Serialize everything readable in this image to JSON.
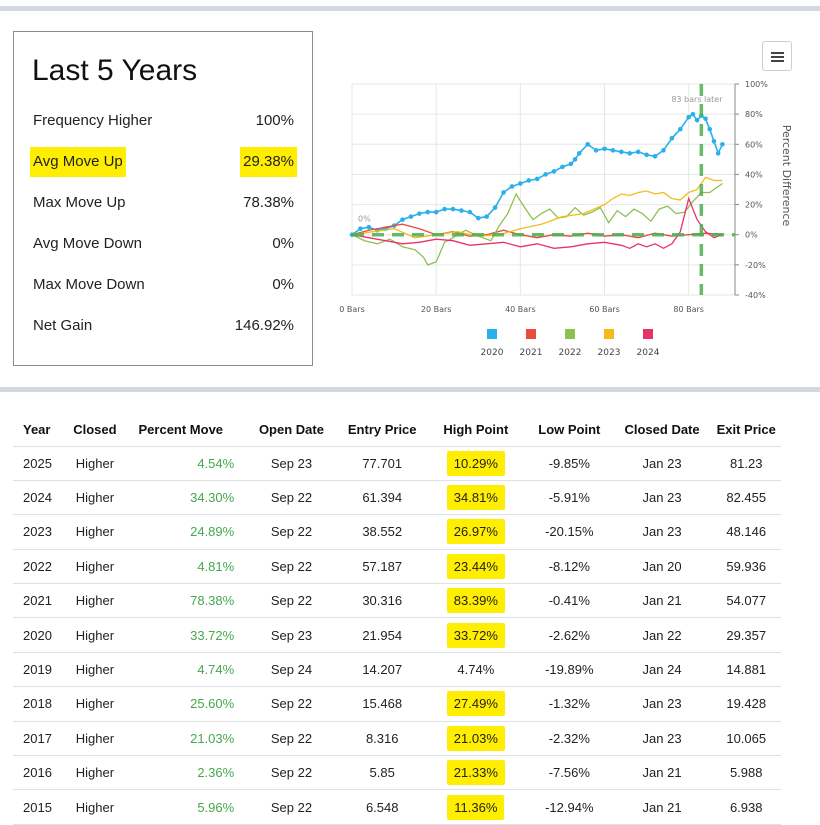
{
  "summary": {
    "title": "Last 5 Years",
    "stats": [
      {
        "label": "Frequency Higher",
        "value": "100%",
        "highlighted": false
      },
      {
        "label": "Avg Move Up",
        "value": "29.38%",
        "highlighted": true
      },
      {
        "label": "Max Move Up",
        "value": "78.38%",
        "highlighted": false
      },
      {
        "label": "Avg Move Down",
        "value": "0%",
        "highlighted": false
      },
      {
        "label": "Max Move Down",
        "value": "0%",
        "highlighted": false
      },
      {
        "label": "Net Gain",
        "value": "146.92%",
        "highlighted": false
      }
    ]
  },
  "menu": {
    "icon": "hamburger-menu-icon"
  },
  "chart_data": {
    "type": "line",
    "xlabel": "",
    "ylabel": "Percent Difference",
    "xlim": [
      0,
      91
    ],
    "ylim": [
      -40,
      100
    ],
    "x_ticks": [
      {
        "value": 0,
        "label": "0 Bars"
      },
      {
        "value": 20,
        "label": "20 Bars"
      },
      {
        "value": 40,
        "label": "40 Bars"
      },
      {
        "value": 60,
        "label": "60 Bars"
      },
      {
        "value": 80,
        "label": "80 Bars"
      }
    ],
    "y_ticks": [
      {
        "value": 100,
        "label": "100%"
      },
      {
        "value": 80,
        "label": "80%"
      },
      {
        "value": 60,
        "label": "60%"
      },
      {
        "value": 40,
        "label": "40%"
      },
      {
        "value": 20,
        "label": "20%"
      },
      {
        "value": 0,
        "label": "0%"
      },
      {
        "value": -20,
        "label": "-20%"
      },
      {
        "value": -40,
        "label": "-40%"
      }
    ],
    "grid": true,
    "legend_position": "bottom",
    "zero_label": "0%",
    "marker_x": 83,
    "marker_label": "83 bars later",
    "series": [
      {
        "name": "2020",
        "color": "#2ab0ea",
        "markers": true,
        "points": [
          [
            0,
            0
          ],
          [
            2,
            4
          ],
          [
            4,
            5
          ],
          [
            6,
            3
          ],
          [
            8,
            4
          ],
          [
            10,
            6
          ],
          [
            12,
            10
          ],
          [
            14,
            12
          ],
          [
            16,
            14
          ],
          [
            18,
            15
          ],
          [
            20,
            15
          ],
          [
            22,
            17
          ],
          [
            24,
            17
          ],
          [
            26,
            16
          ],
          [
            28,
            15
          ],
          [
            30,
            11
          ],
          [
            32,
            12
          ],
          [
            34,
            18
          ],
          [
            36,
            28
          ],
          [
            38,
            32
          ],
          [
            40,
            34
          ],
          [
            42,
            36
          ],
          [
            44,
            37
          ],
          [
            46,
            40
          ],
          [
            48,
            42
          ],
          [
            50,
            45
          ],
          [
            52,
            47
          ],
          [
            53,
            50
          ],
          [
            54,
            54
          ],
          [
            56,
            60
          ],
          [
            58,
            56
          ],
          [
            60,
            57
          ],
          [
            62,
            56
          ],
          [
            64,
            55
          ],
          [
            66,
            54
          ],
          [
            68,
            55
          ],
          [
            70,
            53
          ],
          [
            72,
            52
          ],
          [
            74,
            56
          ],
          [
            76,
            64
          ],
          [
            78,
            70
          ],
          [
            80,
            78
          ],
          [
            81,
            80
          ],
          [
            82,
            76
          ],
          [
            83,
            79
          ],
          [
            84,
            77
          ],
          [
            85,
            70
          ],
          [
            86,
            62
          ],
          [
            87,
            54
          ],
          [
            88,
            60
          ]
        ]
      },
      {
        "name": "2021",
        "color": "#e74c3c",
        "markers": false,
        "points": [
          [
            0,
            0
          ],
          [
            4,
            3
          ],
          [
            8,
            5
          ],
          [
            12,
            7
          ],
          [
            16,
            4
          ],
          [
            20,
            0
          ],
          [
            24,
            2
          ],
          [
            28,
            -1
          ],
          [
            32,
            0
          ],
          [
            36,
            3
          ],
          [
            40,
            0
          ],
          [
            44,
            -2
          ],
          [
            48,
            0
          ],
          [
            52,
            -1
          ],
          [
            56,
            1
          ],
          [
            60,
            -1
          ],
          [
            64,
            0
          ],
          [
            68,
            -2
          ],
          [
            72,
            1
          ],
          [
            76,
            -1
          ],
          [
            80,
            0
          ],
          [
            84,
            1
          ],
          [
            88,
            0
          ]
        ]
      },
      {
        "name": "2022",
        "color": "#8cc152",
        "markers": false,
        "points": [
          [
            0,
            0
          ],
          [
            3,
            -4
          ],
          [
            6,
            -6
          ],
          [
            9,
            -3
          ],
          [
            12,
            -8
          ],
          [
            15,
            -10
          ],
          [
            17,
            -15
          ],
          [
            18,
            -20
          ],
          [
            20,
            -18
          ],
          [
            22,
            -5
          ],
          [
            24,
            -2
          ],
          [
            27,
            3
          ],
          [
            30,
            -1
          ],
          [
            33,
            -4
          ],
          [
            35,
            6
          ],
          [
            37,
            14
          ],
          [
            39,
            27
          ],
          [
            41,
            18
          ],
          [
            43,
            10
          ],
          [
            45,
            14
          ],
          [
            47,
            17
          ],
          [
            49,
            11
          ],
          [
            51,
            12
          ],
          [
            53,
            18
          ],
          [
            55,
            13
          ],
          [
            57,
            15
          ],
          [
            59,
            18
          ],
          [
            61,
            8
          ],
          [
            63,
            16
          ],
          [
            65,
            12
          ],
          [
            67,
            17
          ],
          [
            69,
            14
          ],
          [
            71,
            9
          ],
          [
            73,
            17
          ],
          [
            75,
            19
          ],
          [
            77,
            14
          ],
          [
            79,
            15
          ],
          [
            81,
            22
          ],
          [
            83,
            28
          ],
          [
            85,
            28
          ],
          [
            87,
            32
          ],
          [
            88,
            34
          ]
        ]
      },
      {
        "name": "2023",
        "color": "#f6bb1a",
        "markers": false,
        "points": [
          [
            0,
            0
          ],
          [
            5,
            2
          ],
          [
            10,
            4
          ],
          [
            15,
            -2
          ],
          [
            20,
            0
          ],
          [
            25,
            2
          ],
          [
            30,
            -1
          ],
          [
            35,
            0
          ],
          [
            40,
            4
          ],
          [
            45,
            7
          ],
          [
            50,
            12
          ],
          [
            55,
            14
          ],
          [
            60,
            20
          ],
          [
            62,
            24
          ],
          [
            64,
            27
          ],
          [
            66,
            26
          ],
          [
            68,
            28
          ],
          [
            70,
            29
          ],
          [
            72,
            27
          ],
          [
            74,
            28
          ],
          [
            76,
            24
          ],
          [
            78,
            23
          ],
          [
            80,
            28
          ],
          [
            82,
            30
          ],
          [
            84,
            38
          ],
          [
            86,
            36
          ],
          [
            88,
            36
          ]
        ]
      },
      {
        "name": "2024",
        "color": "#e8336a",
        "markers": false,
        "points": [
          [
            0,
            0
          ],
          [
            4,
            -2
          ],
          [
            8,
            -4
          ],
          [
            12,
            -6
          ],
          [
            16,
            -5
          ],
          [
            20,
            -3
          ],
          [
            24,
            -4
          ],
          [
            28,
            -7
          ],
          [
            32,
            -6
          ],
          [
            36,
            -5
          ],
          [
            40,
            -8
          ],
          [
            44,
            -6
          ],
          [
            48,
            -9
          ],
          [
            52,
            -8
          ],
          [
            56,
            -6
          ],
          [
            60,
            -5
          ],
          [
            64,
            -7
          ],
          [
            66,
            -9
          ],
          [
            68,
            -6
          ],
          [
            70,
            -8
          ],
          [
            72,
            -6
          ],
          [
            74,
            -9
          ],
          [
            76,
            -6
          ],
          [
            78,
            2
          ],
          [
            80,
            24
          ],
          [
            82,
            10
          ],
          [
            84,
            2
          ],
          [
            86,
            -2
          ],
          [
            88,
            0
          ]
        ]
      }
    ]
  },
  "table": {
    "headers": [
      "Year",
      "Closed",
      "Percent Move",
      "Open Date",
      "Entry Price",
      "High Point",
      "Low Point",
      "Closed Date",
      "Exit Price"
    ],
    "rows": [
      {
        "year": "2025",
        "closed": "Higher",
        "pct": "4.54%",
        "open": "Sep 23",
        "entry": "77.701",
        "high": "10.29%",
        "high_hl": true,
        "low": "-9.85%",
        "cdate": "Jan 23",
        "exit": "81.23"
      },
      {
        "year": "2024",
        "closed": "Higher",
        "pct": "34.30%",
        "open": "Sep 22",
        "entry": "61.394",
        "high": "34.81%",
        "high_hl": true,
        "low": "-5.91%",
        "cdate": "Jan 23",
        "exit": "82.455"
      },
      {
        "year": "2023",
        "closed": "Higher",
        "pct": "24.89%",
        "open": "Sep 22",
        "entry": "38.552",
        "high": "26.97%",
        "high_hl": true,
        "low": "-20.15%",
        "cdate": "Jan 23",
        "exit": "48.146"
      },
      {
        "year": "2022",
        "closed": "Higher",
        "pct": "4.81%",
        "open": "Sep 22",
        "entry": "57.187",
        "high": "23.44%",
        "high_hl": true,
        "low": "-8.12%",
        "cdate": "Jan 20",
        "exit": "59.936"
      },
      {
        "year": "2021",
        "closed": "Higher",
        "pct": "78.38%",
        "open": "Sep 22",
        "entry": "30.316",
        "high": "83.39%",
        "high_hl": true,
        "low": "-0.41%",
        "cdate": "Jan 21",
        "exit": "54.077"
      },
      {
        "year": "2020",
        "closed": "Higher",
        "pct": "33.72%",
        "open": "Sep 23",
        "entry": "21.954",
        "high": "33.72%",
        "high_hl": true,
        "low": "-2.62%",
        "cdate": "Jan 22",
        "exit": "29.357"
      },
      {
        "year": "2019",
        "closed": "Higher",
        "pct": "4.74%",
        "open": "Sep 24",
        "entry": "14.207",
        "high": "4.74%",
        "high_hl": false,
        "low": "-19.89%",
        "cdate": "Jan 24",
        "exit": "14.881"
      },
      {
        "year": "2018",
        "closed": "Higher",
        "pct": "25.60%",
        "open": "Sep 22",
        "entry": "15.468",
        "high": "27.49%",
        "high_hl": true,
        "low": "-1.32%",
        "cdate": "Jan 23",
        "exit": "19.428"
      },
      {
        "year": "2017",
        "closed": "Higher",
        "pct": "21.03%",
        "open": "Sep 22",
        "entry": "8.316",
        "high": "21.03%",
        "high_hl": true,
        "low": "-2.32%",
        "cdate": "Jan 23",
        "exit": "10.065"
      },
      {
        "year": "2016",
        "closed": "Higher",
        "pct": "2.36%",
        "open": "Sep 22",
        "entry": "5.85",
        "high": "21.33%",
        "high_hl": true,
        "low": "-7.56%",
        "cdate": "Jan 21",
        "exit": "5.988"
      },
      {
        "year": "2015",
        "closed": "Higher",
        "pct": "5.96%",
        "open": "Sep 22",
        "entry": "6.548",
        "high": "11.36%",
        "high_hl": true,
        "low": "-12.94%",
        "cdate": "Jan 21",
        "exit": "6.938"
      }
    ]
  }
}
